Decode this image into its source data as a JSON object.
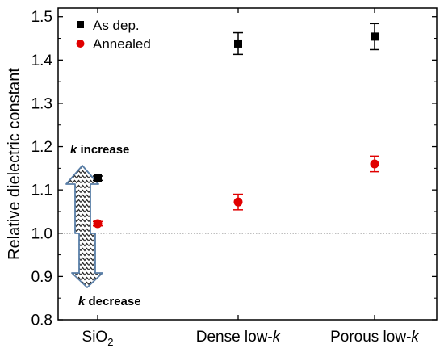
{
  "chart_data": {
    "type": "scatter",
    "ylabel": "Relative dielectric constant",
    "ylim": [
      0.8,
      1.52
    ],
    "yticks": [
      0.8,
      0.9,
      1.0,
      1.1,
      1.2,
      1.3,
      1.4,
      1.5
    ],
    "categories": [
      {
        "text": "SiO",
        "sub": "2",
        "italic": ""
      },
      {
        "text": "Dense low-",
        "sub": "",
        "italic": "k"
      },
      {
        "text": "Porous low-",
        "sub": "",
        "italic": "k"
      }
    ],
    "reference_line": 1.0,
    "series": [
      {
        "name": "As dep.",
        "color": "#000000",
        "marker": "square",
        "values": [
          1.127,
          1.438,
          1.454
        ],
        "errors": [
          0.005,
          0.025,
          0.03
        ]
      },
      {
        "name": "Annealed",
        "color": "#e00000",
        "marker": "circle",
        "values": [
          1.022,
          1.072,
          1.16
        ],
        "errors": [
          0.005,
          0.018,
          0.018
        ]
      }
    ],
    "annotations": {
      "increase": {
        "italic": "k",
        "text": " increase"
      },
      "decrease": {
        "italic": "k",
        "text": " decrease"
      }
    }
  }
}
